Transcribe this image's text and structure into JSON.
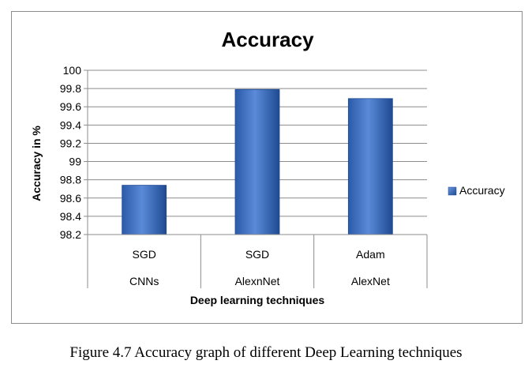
{
  "caption": "Figure 4.7 Accuracy graph of different Deep Learning techniques",
  "chart_data": {
    "type": "bar",
    "title": "Accuracy",
    "ylabel": "Accuracy in %",
    "xlabel": "Deep learning techniques",
    "ylim": [
      98.2,
      100
    ],
    "yticks": [
      "98.2",
      "98.4",
      "98.6",
      "98.8",
      "99",
      "99.2",
      "99.4",
      "99.6",
      "99.8",
      "100"
    ],
    "categories": [
      {
        "level1": "SGD",
        "level2": "CNNs"
      },
      {
        "level1": "SGD",
        "level2": "AlexnNet"
      },
      {
        "level1": "Adam",
        "level2": "AlexNet"
      }
    ],
    "series": [
      {
        "name": "Accuracy",
        "values": [
          98.74,
          99.79,
          99.69
        ]
      }
    ],
    "grid": true,
    "legend_position": "right",
    "bar_color": "#4472c4",
    "bar_color_dark": "#1f4e91"
  }
}
